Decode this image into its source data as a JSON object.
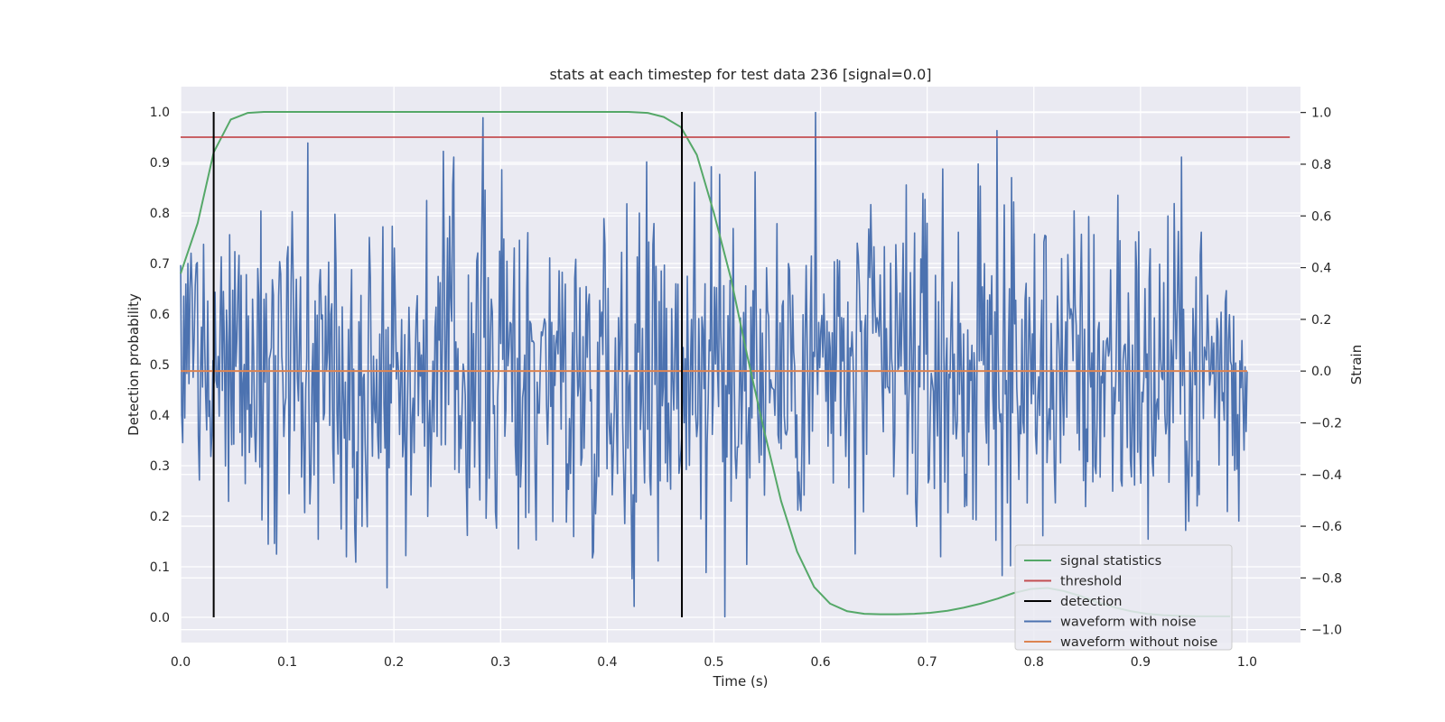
{
  "chart_data": {
    "type": "line",
    "title": "stats at each timestep for test data 236 [signal=0.0]",
    "xlabel": "Time (s)",
    "ylabel": "Detection probability",
    "ylabel_right": "Strain",
    "xlim": [
      0.0,
      1.05
    ],
    "ylim": [
      -0.05,
      1.05
    ],
    "ylim_right": [
      -1.05,
      1.1
    ],
    "xticks": [
      "0.0",
      "0.1",
      "0.2",
      "0.3",
      "0.4",
      "0.5",
      "0.6",
      "0.7",
      "0.8",
      "0.9",
      "1.0"
    ],
    "yticks": [
      "0.0",
      "0.1",
      "0.2",
      "0.3",
      "0.4",
      "0.5",
      "0.6",
      "0.7",
      "0.8",
      "0.9",
      "1.0"
    ],
    "yticks_right": [
      "−1.0",
      "−0.8",
      "−0.6",
      "−0.4",
      "−0.2",
      "0.0",
      "0.2",
      "0.4",
      "0.6",
      "0.8",
      "1.0"
    ],
    "grid": true,
    "legend_position": "lower-right",
    "series": [
      {
        "name": "signal statistics",
        "axis": "left",
        "color": "#55a868",
        "x": [
          0.0,
          0.016,
          0.031,
          0.047,
          0.063,
          0.078,
          0.094,
          0.15,
          0.25,
          0.35,
          0.42,
          0.438,
          0.453,
          0.469,
          0.484,
          0.5,
          0.516,
          0.531,
          0.547,
          0.563,
          0.578,
          0.594,
          0.609,
          0.625,
          0.641,
          0.656,
          0.672,
          0.688,
          0.703,
          0.719,
          0.734,
          0.75,
          0.766,
          0.781,
          0.797,
          0.813,
          0.828,
          0.844,
          0.859,
          0.875,
          0.891,
          0.906,
          0.922,
          0.938,
          0.953,
          0.969,
          0.984
        ],
        "y": [
          0.68,
          0.78,
          0.92,
          0.985,
          0.998,
          1.0,
          1.0,
          1.0,
          1.0,
          1.0,
          1.0,
          0.998,
          0.99,
          0.97,
          0.915,
          0.8,
          0.67,
          0.52,
          0.37,
          0.23,
          0.13,
          0.06,
          0.027,
          0.012,
          0.007,
          0.006,
          0.006,
          0.007,
          0.009,
          0.013,
          0.019,
          0.027,
          0.037,
          0.048,
          0.056,
          0.058,
          0.052,
          0.042,
          0.03,
          0.02,
          0.012,
          0.007,
          0.004,
          0.003,
          0.002,
          0.002,
          0.002
        ]
      },
      {
        "name": "threshold",
        "axis": "left",
        "color": "#c44e52",
        "x": [
          0.0,
          1.04
        ],
        "y": [
          0.95,
          0.95
        ]
      },
      {
        "name": "detection",
        "axis": "left",
        "color": "#000000",
        "x": [
          0.031,
          0.47
        ],
        "y_range": [
          0.0,
          1.0
        ]
      },
      {
        "name": "waveform with noise",
        "axis": "right",
        "color": "#4c72b0",
        "x_range": [
          0.0,
          1.0
        ],
        "n_points": 1024,
        "y_sample": [
          0.41,
          -0.33,
          0.37,
          0.09,
          -0.41,
          0.26,
          -0.6,
          0.56,
          -0.2,
          0.72,
          0.98,
          0.24,
          0.17,
          -0.64,
          0.59,
          -0.91,
          0.41,
          0.73,
          -0.95,
          0.77,
          -0.24,
          1.0,
          -0.33,
          0.15,
          0.72,
          -0.11,
          -0.52,
          0.93,
          -0.51,
          0.29,
          -0.35,
          0.68,
          -0.65,
          0.54,
          0.12,
          -0.58
        ],
        "y_range_observed": [
          -0.97,
          1.0
        ]
      },
      {
        "name": "waveform without noise",
        "axis": "right",
        "color": "#dd8452",
        "x": [
          0.0,
          1.0
        ],
        "y": [
          0.0,
          0.0
        ]
      }
    ]
  }
}
